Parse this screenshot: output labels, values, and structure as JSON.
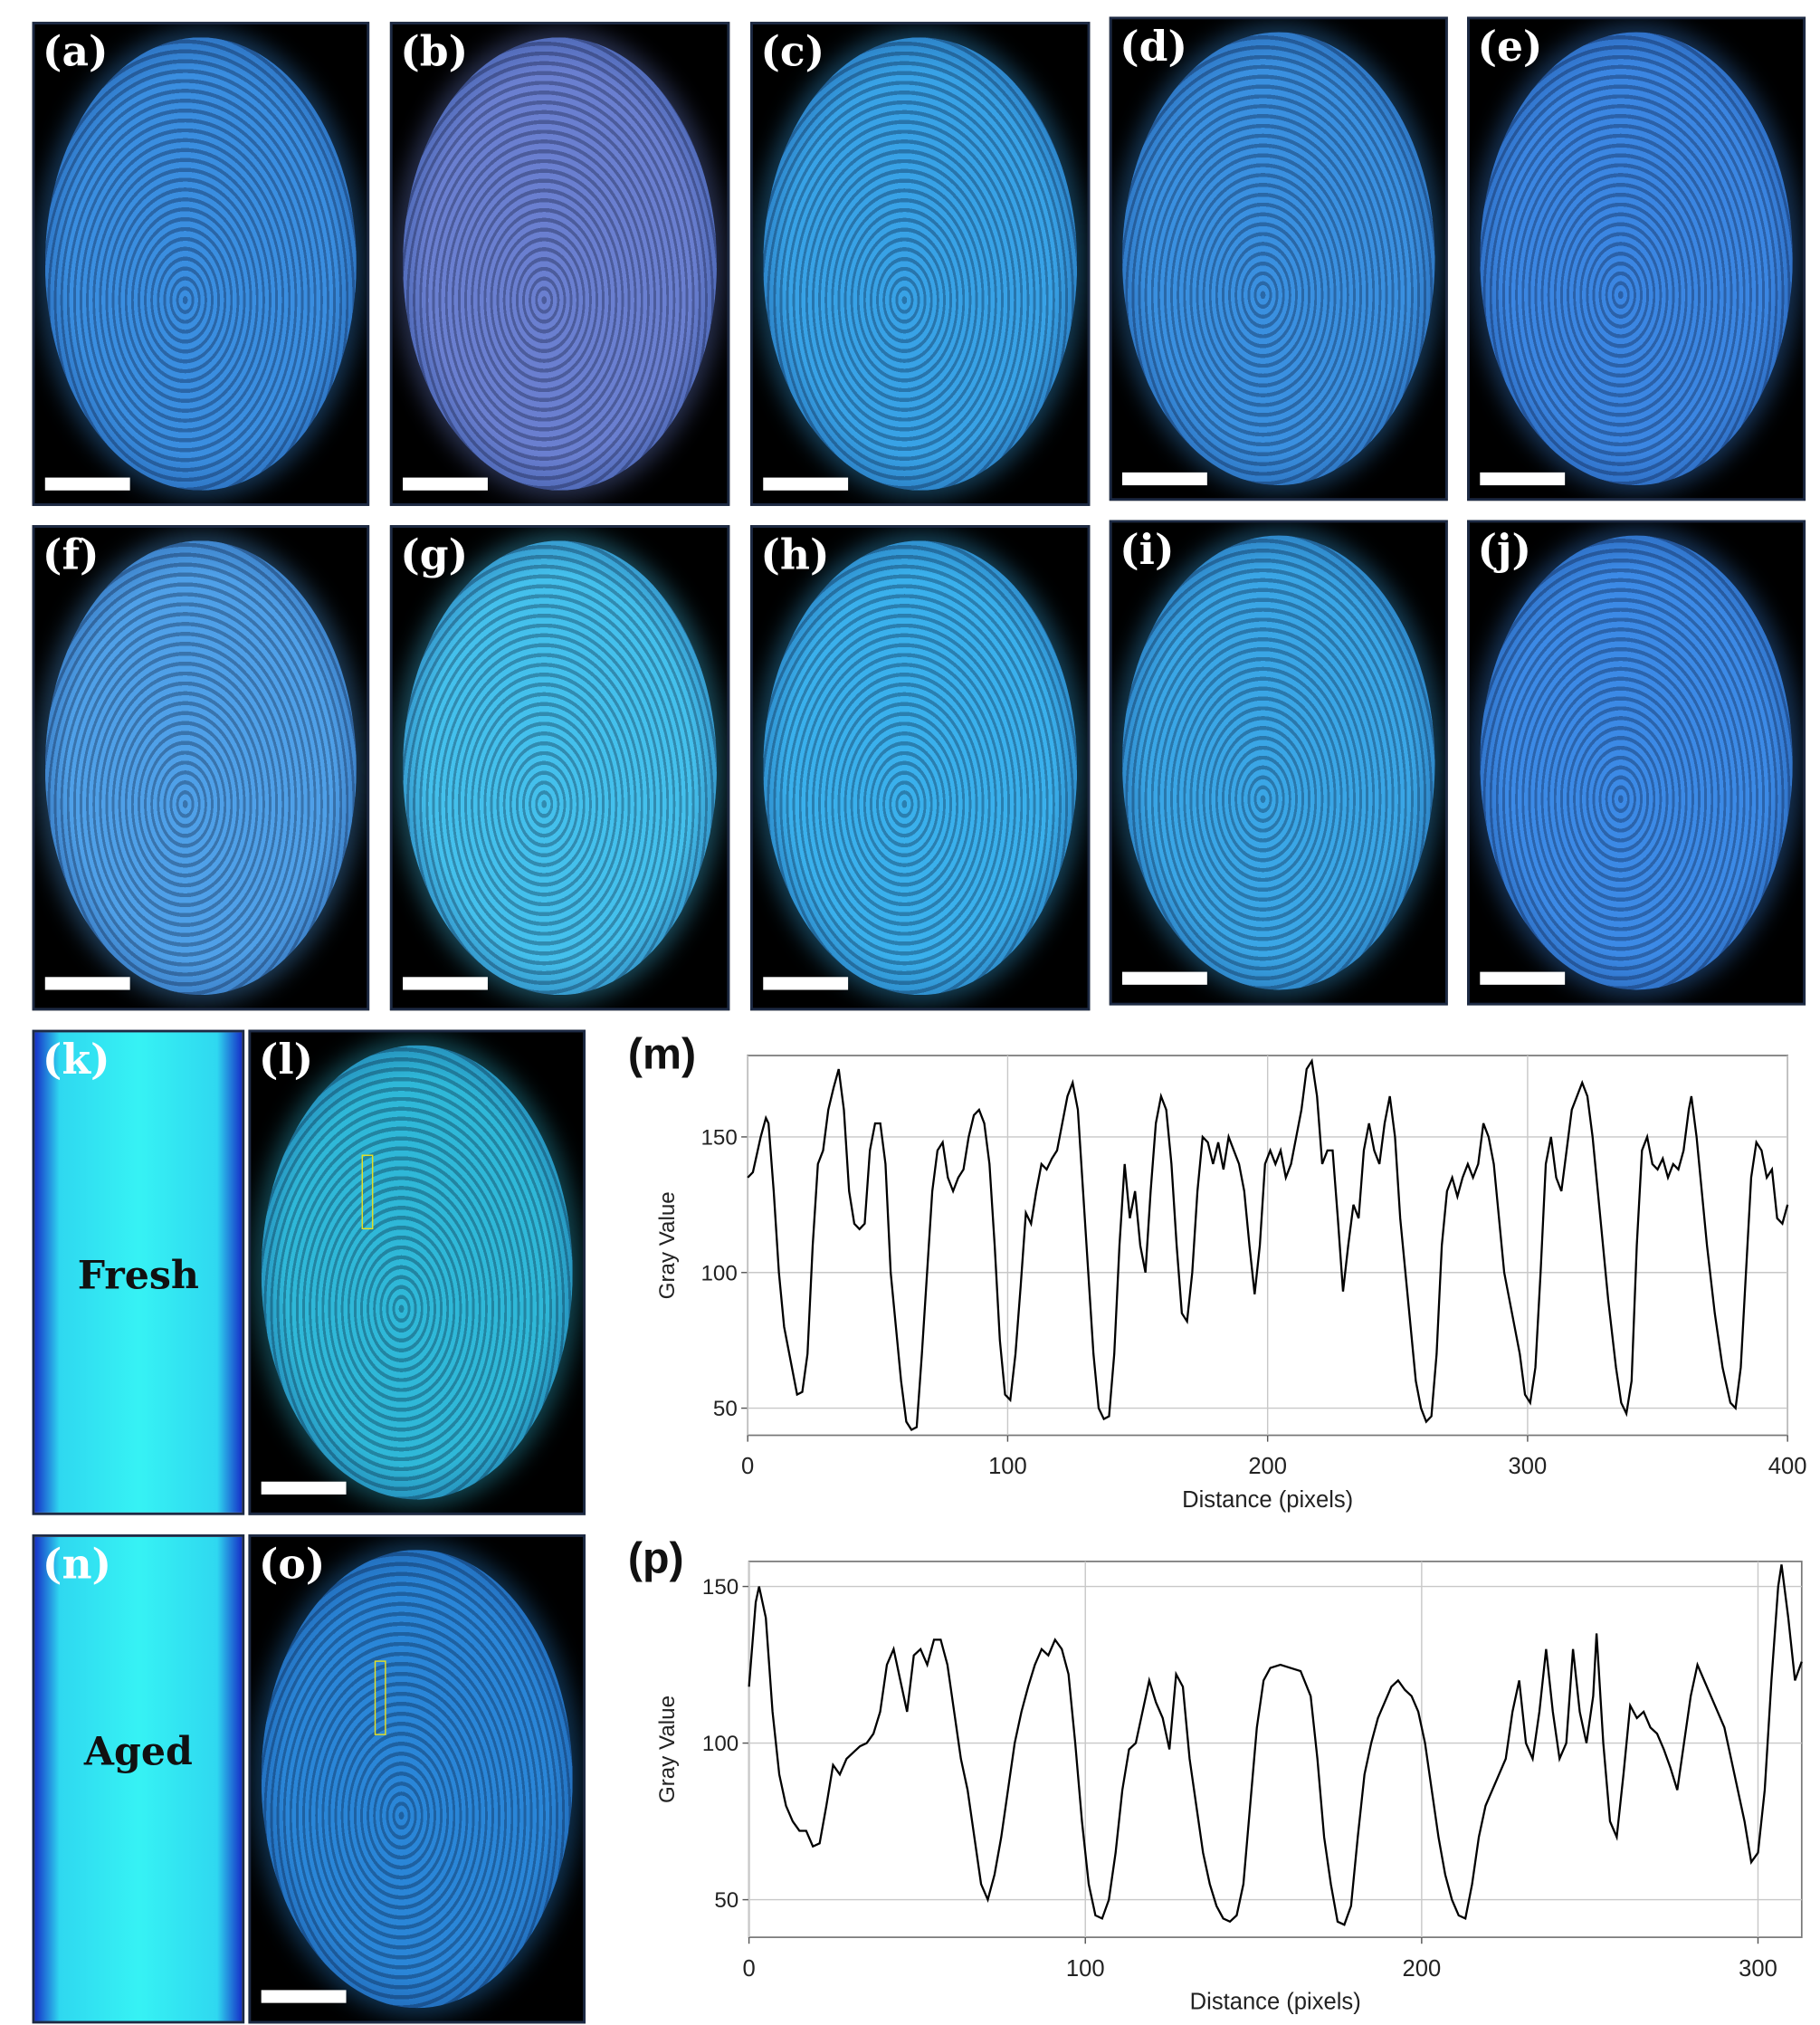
{
  "panels": {
    "labels": [
      "(a)",
      "(b)",
      "(c)",
      "(d)",
      "(e)",
      "(f)",
      "(g)",
      "(h)",
      "(i)",
      "(j)",
      "(k)",
      "(l)",
      "(n)",
      "(o)"
    ],
    "vial_labels": [
      "Fresh",
      "Aged"
    ]
  },
  "chart_data": [
    {
      "type": "line",
      "title": "(m)",
      "x_label": "Distance (pixels)",
      "y_label": "Gray Value",
      "color": "#000000",
      "grid": true,
      "xlim": [
        0,
        400
      ],
      "ylim": [
        40,
        180
      ],
      "xticks": [
        0,
        100,
        200,
        300,
        400
      ],
      "yticks": [
        50,
        100,
        150
      ],
      "x": [
        0,
        2,
        5,
        7,
        8,
        10,
        12,
        14,
        17,
        19,
        21,
        23,
        25,
        27,
        29,
        31,
        33,
        35,
        37,
        39,
        41,
        43,
        45,
        47,
        49,
        51,
        53,
        55,
        57,
        59,
        61,
        63,
        65,
        67,
        69,
        71,
        73,
        75,
        77,
        79,
        81,
        83,
        85,
        87,
        89,
        91,
        93,
        95,
        97,
        99,
        101,
        103,
        105,
        107,
        109,
        111,
        113,
        115,
        117,
        119,
        121,
        123,
        125,
        127,
        129,
        131,
        133,
        135,
        137,
        139,
        141,
        143,
        145,
        147,
        149,
        151,
        153,
        155,
        157,
        159,
        161,
        163,
        165,
        167,
        169,
        171,
        173,
        175,
        177,
        179,
        181,
        183,
        185,
        187,
        189,
        191,
        193,
        195,
        197,
        199,
        201,
        203,
        205,
        207,
        209,
        211,
        213,
        215,
        217,
        219,
        221,
        223,
        225,
        227,
        229,
        231,
        233,
        235,
        237,
        239,
        241,
        243,
        245,
        247,
        249,
        251,
        253,
        255,
        257,
        259,
        261,
        263,
        265,
        267,
        269,
        271,
        273,
        275,
        277,
        279,
        281,
        283,
        285,
        287,
        289,
        291,
        293,
        295,
        297,
        299,
        301,
        303,
        305,
        307,
        309,
        311,
        313,
        315,
        317,
        319,
        321,
        323,
        325,
        328,
        331,
        334,
        336,
        338,
        340,
        342,
        344,
        346,
        348,
        350,
        352,
        354,
        356,
        358,
        360,
        362,
        363,
        365,
        367,
        369,
        372,
        375,
        378,
        380,
        382,
        384,
        386,
        388,
        390,
        392,
        394,
        396,
        398,
        400
      ],
      "values": [
        135,
        137,
        150,
        157,
        155,
        130,
        100,
        80,
        65,
        55,
        56,
        70,
        110,
        140,
        145,
        160,
        168,
        175,
        160,
        130,
        118,
        116,
        118,
        145,
        155,
        155,
        140,
        100,
        80,
        60,
        45,
        42,
        43,
        70,
        100,
        130,
        145,
        148,
        135,
        130,
        135,
        138,
        150,
        158,
        160,
        155,
        140,
        110,
        75,
        55,
        53,
        70,
        95,
        122,
        118,
        130,
        140,
        138,
        142,
        145,
        155,
        165,
        170,
        160,
        130,
        100,
        70,
        50,
        46,
        47,
        70,
        110,
        140,
        120,
        130,
        110,
        100,
        130,
        155,
        165,
        160,
        140,
        110,
        85,
        82,
        100,
        130,
        150,
        148,
        140,
        148,
        138,
        150,
        145,
        140,
        130,
        110,
        92,
        110,
        140,
        145,
        140,
        145,
        135,
        140,
        150,
        160,
        175,
        178,
        165,
        140,
        145,
        145,
        120,
        93,
        110,
        125,
        120,
        145,
        155,
        145,
        140,
        155,
        165,
        150,
        120,
        100,
        80,
        60,
        50,
        45,
        47,
        70,
        110,
        130,
        135,
        128,
        135,
        140,
        135,
        140,
        155,
        150,
        140,
        120,
        100,
        90,
        80,
        70,
        55,
        52,
        65,
        100,
        140,
        150,
        135,
        130,
        145,
        160,
        165,
        170,
        165,
        150,
        120,
        90,
        65,
        52,
        48,
        60,
        110,
        145,
        150,
        140,
        138,
        142,
        135,
        140,
        138,
        145,
        160,
        165,
        150,
        130,
        110,
        85,
        65,
        52,
        50,
        65,
        100,
        135,
        148,
        145,
        135,
        138,
        120,
        118,
        125
      ]
    },
    {
      "type": "line",
      "title": "(p)",
      "x_label": "Distance (pixels)",
      "y_label": "Gray Value",
      "color": "#000000",
      "grid": true,
      "xlim": [
        0,
        313
      ],
      "ylim": [
        38,
        158
      ],
      "xticks": [
        0,
        100,
        200,
        300
      ],
      "yticks": [
        50,
        100,
        150
      ],
      "x": [
        0,
        2,
        3,
        5,
        7,
        9,
        11,
        13,
        15,
        17,
        19,
        21,
        23,
        25,
        27,
        29,
        31,
        33,
        35,
        37,
        39,
        41,
        43,
        45,
        47,
        49,
        51,
        53,
        55,
        57,
        59,
        61,
        63,
        65,
        67,
        69,
        71,
        73,
        75,
        77,
        79,
        81,
        83,
        85,
        87,
        89,
        91,
        93,
        95,
        97,
        99,
        101,
        103,
        105,
        107,
        109,
        111,
        113,
        115,
        117,
        119,
        121,
        123,
        125,
        127,
        129,
        131,
        133,
        135,
        137,
        139,
        141,
        143,
        145,
        147,
        149,
        151,
        153,
        155,
        158,
        161,
        164,
        167,
        169,
        171,
        173,
        175,
        177,
        179,
        181,
        183,
        185,
        187,
        189,
        191,
        193,
        195,
        197,
        199,
        201,
        203,
        205,
        207,
        209,
        211,
        213,
        215,
        217,
        219,
        221,
        223,
        225,
        227,
        229,
        231,
        233,
        235,
        237,
        239,
        241,
        243,
        245,
        247,
        249,
        251,
        252,
        254,
        256,
        258,
        260,
        262,
        264,
        266,
        268,
        270,
        272,
        274,
        276,
        278,
        280,
        282,
        284,
        286,
        288,
        290,
        292,
        294,
        296,
        298,
        300,
        302,
        304,
        306,
        307,
        309,
        311,
        313
      ],
      "values": [
        118,
        145,
        150,
        140,
        110,
        90,
        80,
        75,
        72,
        72,
        67,
        68,
        80,
        93,
        90,
        95,
        97,
        99,
        100,
        103,
        110,
        125,
        130,
        120,
        110,
        128,
        130,
        125,
        133,
        133,
        125,
        110,
        95,
        85,
        70,
        55,
        50,
        58,
        70,
        85,
        100,
        110,
        118,
        125,
        130,
        128,
        133,
        130,
        122,
        100,
        75,
        55,
        45,
        44,
        50,
        65,
        85,
        98,
        100,
        110,
        120,
        113,
        108,
        98,
        122,
        118,
        95,
        80,
        65,
        55,
        48,
        44,
        43,
        45,
        55,
        80,
        105,
        120,
        124,
        125,
        124,
        123,
        115,
        95,
        70,
        55,
        43,
        42,
        48,
        70,
        90,
        100,
        108,
        113,
        118,
        120,
        117,
        115,
        110,
        100,
        85,
        70,
        58,
        50,
        45,
        44,
        55,
        70,
        80,
        85,
        90,
        95,
        110,
        120,
        100,
        95,
        110,
        130,
        110,
        95,
        100,
        130,
        110,
        100,
        115,
        135,
        100,
        75,
        70,
        90,
        112,
        108,
        110,
        105,
        103,
        98,
        92,
        85,
        100,
        115,
        125,
        120,
        115,
        110,
        105,
        95,
        85,
        75,
        62,
        65,
        85,
        120,
        150,
        157,
        140,
        120,
        126
      ]
    }
  ]
}
